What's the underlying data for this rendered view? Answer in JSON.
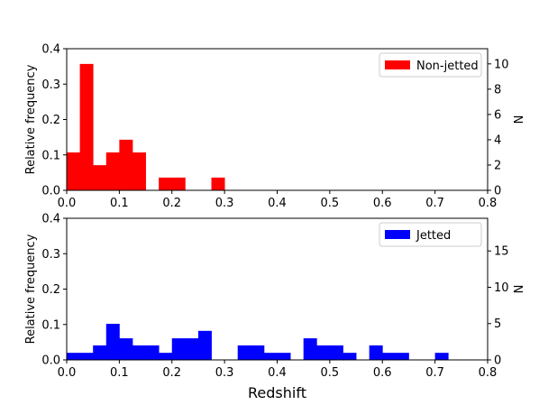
{
  "chart_data": [
    {
      "type": "bar",
      "name": "top-panel",
      "bin_width": 0.025,
      "xlim": [
        0.0,
        0.8
      ],
      "ylim": [
        0.0,
        0.4
      ],
      "ylabel": "Relative frequency",
      "y2label": "N",
      "y2lim": [
        0,
        11.2
      ],
      "xticks": [
        "0.0",
        "0.1",
        "0.2",
        "0.3",
        "0.4",
        "0.5",
        "0.6",
        "0.7",
        "0.8"
      ],
      "yticks": [
        "0.0",
        "0.1",
        "0.2",
        "0.3",
        "0.4"
      ],
      "y2ticks": [
        "0",
        "2",
        "4",
        "6",
        "8",
        "10"
      ],
      "legend": "top-right",
      "series": [
        {
          "name": "Non-jetted",
          "color": "#ff0000",
          "bins_start": [
            0.0,
            0.025,
            0.05,
            0.075,
            0.1,
            0.125,
            0.175,
            0.2,
            0.275
          ],
          "values": [
            0.107,
            0.357,
            0.071,
            0.107,
            0.143,
            0.107,
            0.036,
            0.036,
            0.036
          ]
        }
      ]
    },
    {
      "type": "bar",
      "name": "bottom-panel",
      "bin_width": 0.025,
      "xlim": [
        0.0,
        0.8
      ],
      "ylim": [
        0.0,
        0.4
      ],
      "xlabel": "Redshift",
      "ylabel": "Relative frequency",
      "y2label": "N",
      "y2lim": [
        0,
        19.5
      ],
      "xticks": [
        "0.0",
        "0.1",
        "0.2",
        "0.3",
        "0.4",
        "0.5",
        "0.6",
        "0.7",
        "0.8"
      ],
      "yticks": [
        "0.0",
        "0.1",
        "0.2",
        "0.3",
        "0.4"
      ],
      "y2ticks": [
        "0",
        "5",
        "10",
        "15"
      ],
      "legend": "top-right",
      "series": [
        {
          "name": "Jetted",
          "color": "#0000ff",
          "bins_start": [
            0.0,
            0.025,
            0.05,
            0.075,
            0.1,
            0.125,
            0.15,
            0.175,
            0.2,
            0.225,
            0.25,
            0.325,
            0.35,
            0.375,
            0.4,
            0.45,
            0.475,
            0.5,
            0.525,
            0.575,
            0.6,
            0.625,
            0.7
          ],
          "values": [
            0.02,
            0.02,
            0.041,
            0.102,
            0.061,
            0.041,
            0.041,
            0.02,
            0.061,
            0.061,
            0.082,
            0.041,
            0.041,
            0.02,
            0.02,
            0.061,
            0.041,
            0.041,
            0.02,
            0.041,
            0.02,
            0.02,
            0.02
          ]
        }
      ]
    }
  ]
}
